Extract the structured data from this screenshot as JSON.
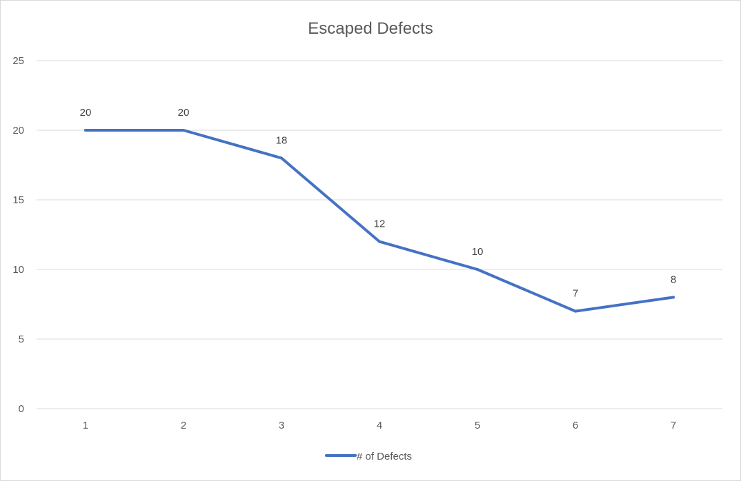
{
  "chart_data": {
    "type": "line",
    "title": "Escaped Defects",
    "xlabel": "",
    "ylabel": "",
    "x": [
      1,
      2,
      3,
      4,
      5,
      6,
      7
    ],
    "series": [
      {
        "name": "# of Defects",
        "values": [
          20,
          20,
          18,
          12,
          10,
          7,
          8
        ],
        "color": "#4472c4"
      }
    ],
    "ylim": [
      0,
      25
    ],
    "yticks": [
      0,
      5,
      10,
      15,
      20,
      25
    ],
    "grid": true,
    "legend": "bottom",
    "data_labels": true
  }
}
